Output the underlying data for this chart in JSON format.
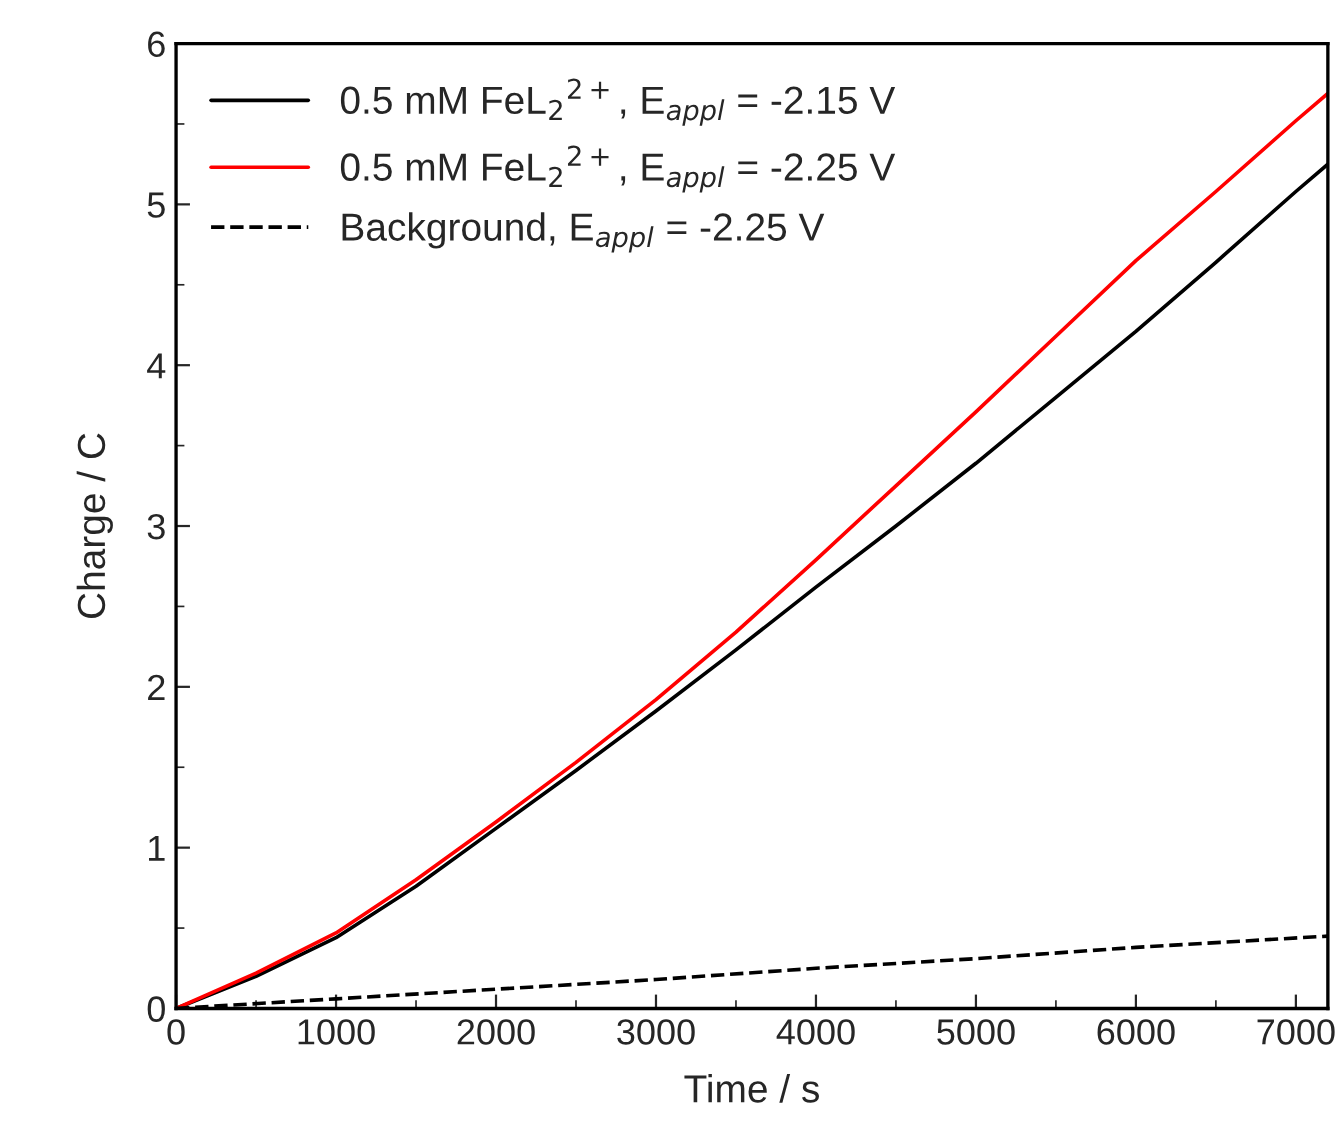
{
  "chart_data": {
    "type": "line",
    "xlabel": "Time / s",
    "ylabel": "Charge / C",
    "xlim": [
      0,
      7200
    ],
    "ylim": [
      0,
      6
    ],
    "xticks": [
      0,
      1000,
      2000,
      3000,
      4000,
      5000,
      6000,
      7000
    ],
    "yticks": [
      0,
      1,
      2,
      3,
      4,
      5,
      6
    ],
    "grid": false,
    "legend": "top left",
    "marker": "none",
    "x": [
      0,
      500,
      1000,
      1500,
      2000,
      2500,
      3000,
      3500,
      4000,
      4500,
      5000,
      5500,
      6000,
      6500,
      7000,
      7200
    ],
    "series": [
      {
        "name": "0.5 mM FeL$_{2}$$^{2+}$, E$_{appl}$ = -2.15 V",
        "color": "#000000",
        "line_style": "solid",
        "values": [
          0,
          0.2,
          0.44,
          0.76,
          1.12,
          1.48,
          1.85,
          2.23,
          2.62,
          3.0,
          3.39,
          3.8,
          4.21,
          4.64,
          5.08,
          5.25
        ]
      },
      {
        "name": "0.5 mM FeL$_{2}$$^{2+}$, E$_{appl}$ = -2.25 V",
        "color": "#ff0000",
        "line_style": "solid",
        "values": [
          0,
          0.22,
          0.47,
          0.8,
          1.16,
          1.53,
          1.92,
          2.34,
          2.79,
          3.25,
          3.71,
          4.18,
          4.65,
          5.08,
          5.52,
          5.69
        ]
      },
      {
        "name": "Background, E$_{appl}$ = -2.25 V",
        "color": "#000000",
        "line_style": "dashed",
        "x": [
          0,
          1000,
          2000,
          3000,
          4000,
          5000,
          6000,
          7200
        ],
        "values": [
          0,
          0.06,
          0.12,
          0.18,
          0.25,
          0.31,
          0.38,
          0.45
        ]
      }
    ]
  }
}
